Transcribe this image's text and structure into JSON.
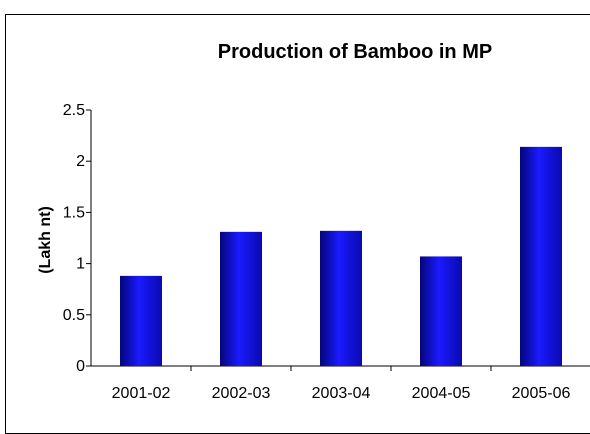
{
  "chart_data": {
    "type": "bar",
    "title": "Production of Bamboo in MP",
    "xlabel": "",
    "ylabel": "(Lakh nt)",
    "categories": [
      "2001-02",
      "2002-03",
      "2003-04",
      "2004-05",
      "2005-06"
    ],
    "values": [
      0.88,
      1.31,
      1.32,
      1.07,
      2.14
    ],
    "ylim": [
      0,
      2.5
    ],
    "yticks": [
      "0",
      "0.5",
      "1",
      "1.5",
      "2",
      "2.5"
    ],
    "grid": false,
    "legend": "none",
    "bar_color": "#1010d8"
  }
}
